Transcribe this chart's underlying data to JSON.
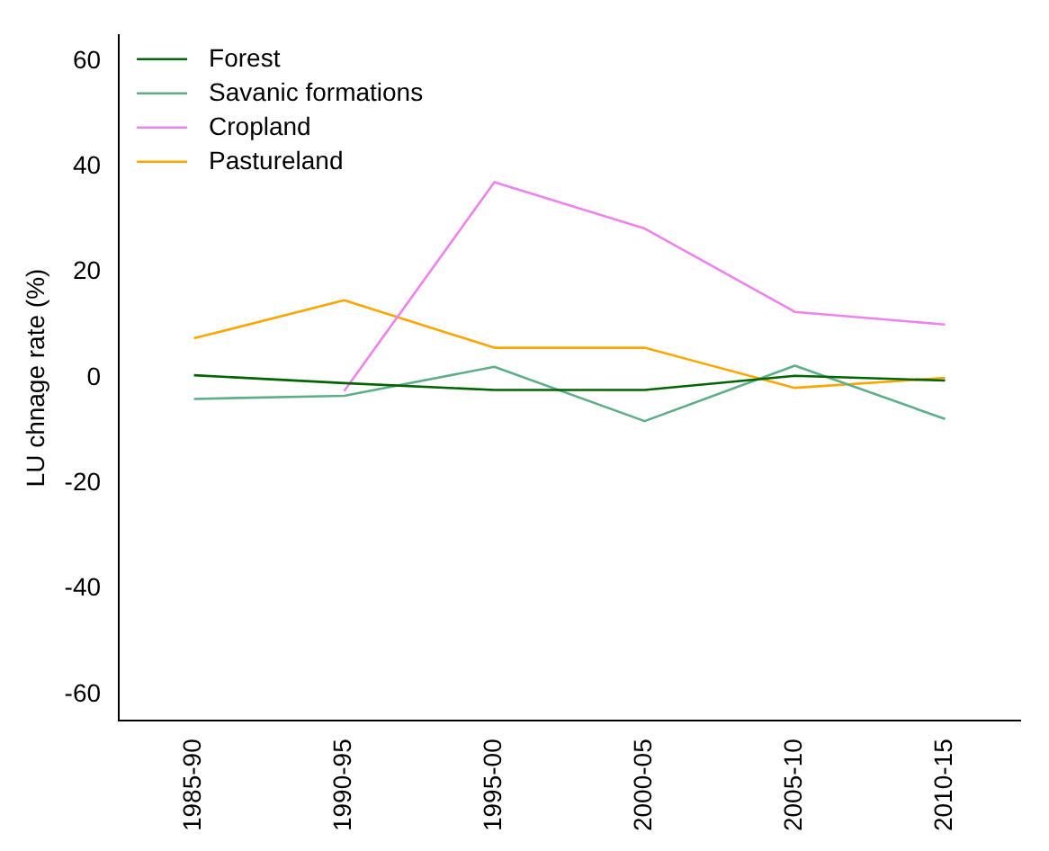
{
  "chart_data": {
    "type": "line",
    "ylabel": "LU chnage rate (%)",
    "categories": [
      "1985-90",
      "1990-95",
      "1995-00",
      "2000-05",
      "2005-10",
      "2010-15"
    ],
    "series": [
      {
        "name": "Forest",
        "color": "#006400",
        "values": [
          0.5,
          -1,
          -2.3,
          -2.3,
          0.4,
          -0.5
        ]
      },
      {
        "name": "Savanic formations",
        "color": "#5fae8a",
        "values": [
          -4,
          -3.4,
          2.1,
          -8.2,
          2.3,
          -7.8
        ]
      },
      {
        "name": "Cropland",
        "color": "#ee82ee",
        "values": [
          null,
          -2.5,
          37.1,
          28.3,
          12.5,
          10.1
        ]
      },
      {
        "name": "Pastureland",
        "color": "#ffa500",
        "values": [
          7.5,
          14.7,
          5.7,
          5.7,
          -1.9,
          0
        ]
      }
    ],
    "ylim": [
      -65,
      65
    ],
    "yticks": [
      -60,
      -40,
      -20,
      0,
      20,
      40,
      60
    ],
    "grid": false,
    "legend": "top left",
    "marker": "none",
    "line_style": "solid"
  }
}
